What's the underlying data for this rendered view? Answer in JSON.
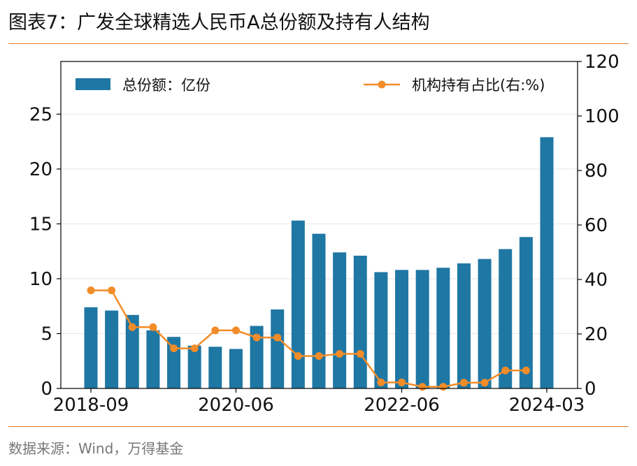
{
  "title": "图表7：广发全球精选人民币A总份额及持有人结构",
  "source": "数据来源：Wind，万得基金",
  "chart_data": {
    "type": "bar+line",
    "categories": [
      "2018-09",
      "2018-12",
      "2019-03",
      "2019-06",
      "2019-09",
      "2019-12",
      "2020-03",
      "2020-06",
      "2020-09",
      "2020-12",
      "2021-03",
      "2021-06",
      "2021-09",
      "2021-12",
      "2022-03",
      "2022-06",
      "2022-09",
      "2022-12",
      "2023-03",
      "2023-06",
      "2023-09",
      "2023-12",
      "2024-03"
    ],
    "x_tick_labels": [
      "2018-09",
      "2020-06",
      "2022-06",
      "2024-03"
    ],
    "series": [
      {
        "name": "总份额：亿份",
        "type": "bar",
        "axis": "left",
        "color": "#1f77a4",
        "values": [
          7.4,
          7.1,
          6.7,
          5.3,
          4.7,
          3.9,
          3.8,
          3.6,
          5.7,
          7.2,
          15.3,
          14.1,
          12.4,
          12.1,
          10.6,
          10.8,
          10.8,
          11.0,
          11.4,
          11.8,
          12.7,
          13.8,
          22.9
        ]
      },
      {
        "name": "机构持有占比(右:%)",
        "type": "line",
        "axis": "right",
        "color": "#f28c28",
        "values": [
          36,
          36,
          22.5,
          22.5,
          14.7,
          14.7,
          21.3,
          21.3,
          18.7,
          18.7,
          11.9,
          11.9,
          12.7,
          12.7,
          2.2,
          2.2,
          0.6,
          0.6,
          2.1,
          2.1,
          6.6,
          6.6,
          null
        ]
      }
    ],
    "left_axis": {
      "min": 0,
      "max": 29.8,
      "ticks": [
        0,
        5,
        10,
        15,
        20,
        25
      ]
    },
    "right_axis": {
      "min": 0,
      "max": 120,
      "ticks": [
        0,
        20,
        40,
        60,
        80,
        100,
        120
      ]
    },
    "grid": true,
    "legend": "top"
  }
}
